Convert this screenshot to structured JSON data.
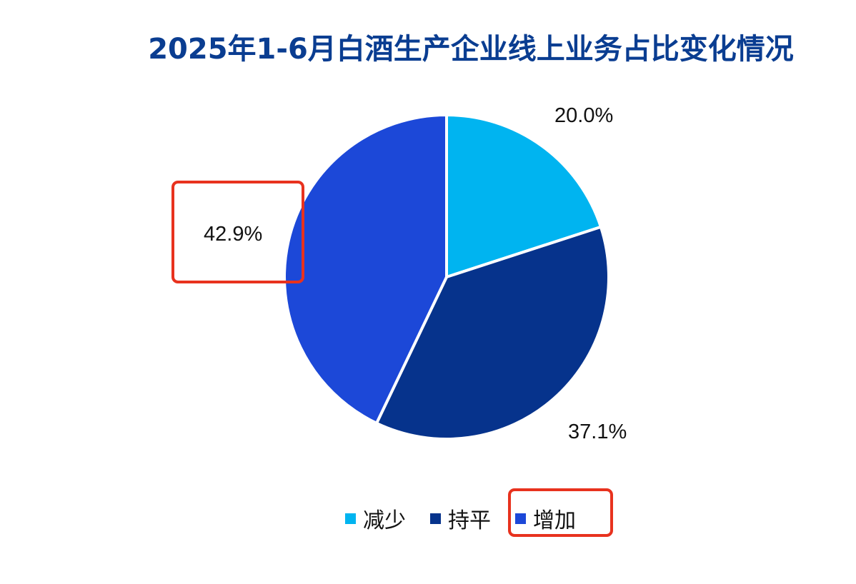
{
  "chart_data": {
    "type": "pie",
    "title": "2025年1-6月白酒生产企业线上业务占比变化情况",
    "categories": [
      "减少",
      "持平",
      "增加"
    ],
    "values": [
      20.0,
      37.1,
      42.9
    ],
    "value_labels": [
      "20.0%",
      "37.1%",
      "42.9%"
    ],
    "colors": [
      "#00b4f0",
      "#06338c",
      "#1c48d8"
    ],
    "start_angle_deg": 0,
    "direction": "clockwise",
    "legend": {
      "position": "bottom",
      "entries": [
        "减少",
        "持平",
        "增加"
      ]
    },
    "highlighted": [
      "42.9%",
      "增加"
    ]
  }
}
